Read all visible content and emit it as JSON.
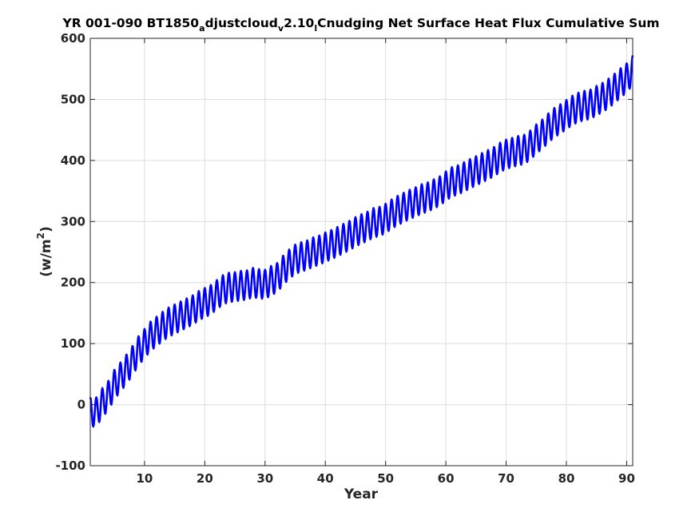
{
  "chart_data": {
    "type": "line",
    "title": {
      "part1": "YR 001-090 BT1850",
      "sub1": "a",
      "part2": "djustcloud",
      "sub2": "v",
      "part3": "2.10",
      "sub3": "l",
      "part4": "Cnudging Net Surface Heat Flux  Cumulative Sum"
    },
    "xlabel": "Year",
    "ylabel": {
      "base": "(w/m",
      "sup": "2",
      "close": ")"
    },
    "xlim": [
      1,
      91
    ],
    "ylim": [
      -100,
      600
    ],
    "xticks": [
      10,
      20,
      30,
      40,
      50,
      60,
      70,
      80,
      90
    ],
    "yticks": [
      -100,
      0,
      100,
      200,
      300,
      400,
      500,
      600
    ],
    "grid": true,
    "series": [
      {
        "color": "#0000ff",
        "annual_mean": {
          "x": [
            1,
            2,
            3,
            4,
            5,
            6,
            7,
            8,
            9,
            10,
            11,
            12,
            13,
            14,
            15,
            16,
            17,
            18,
            19,
            20,
            21,
            22,
            23,
            24,
            25,
            26,
            27,
            28,
            29,
            30,
            31,
            32,
            33,
            34,
            35,
            36,
            37,
            38,
            39,
            40,
            41,
            42,
            43,
            44,
            45,
            46,
            47,
            48,
            49,
            50,
            51,
            52,
            53,
            54,
            55,
            56,
            57,
            58,
            59,
            60,
            61,
            62,
            63,
            64,
            65,
            66,
            67,
            68,
            69,
            70,
            71,
            72,
            73,
            74,
            75,
            76,
            77,
            78,
            79,
            80,
            81,
            82,
            83,
            84,
            85,
            86,
            87,
            88,
            89,
            90,
            91
          ],
          "y": [
            -12,
            -12,
            3,
            15,
            33,
            45,
            58,
            72,
            88,
            100,
            112,
            120,
            128,
            135,
            140,
            145,
            150,
            155,
            162,
            167,
            172,
            180,
            188,
            192,
            193,
            195,
            196,
            200,
            198,
            197,
            203,
            208,
            220,
            230,
            238,
            242,
            245,
            250,
            253,
            258,
            262,
            267,
            272,
            277,
            283,
            288,
            292,
            298,
            300,
            305,
            312,
            318,
            323,
            328,
            332,
            337,
            340,
            345,
            350,
            358,
            365,
            368,
            373,
            378,
            383,
            388,
            393,
            398,
            405,
            410,
            413,
            416,
            418,
            425,
            435,
            443,
            453,
            462,
            468,
            475,
            482,
            487,
            490,
            492,
            498,
            503,
            510,
            518,
            527,
            535,
            548
          ]
        },
        "seasonal_amplitude": 24
      }
    ]
  }
}
